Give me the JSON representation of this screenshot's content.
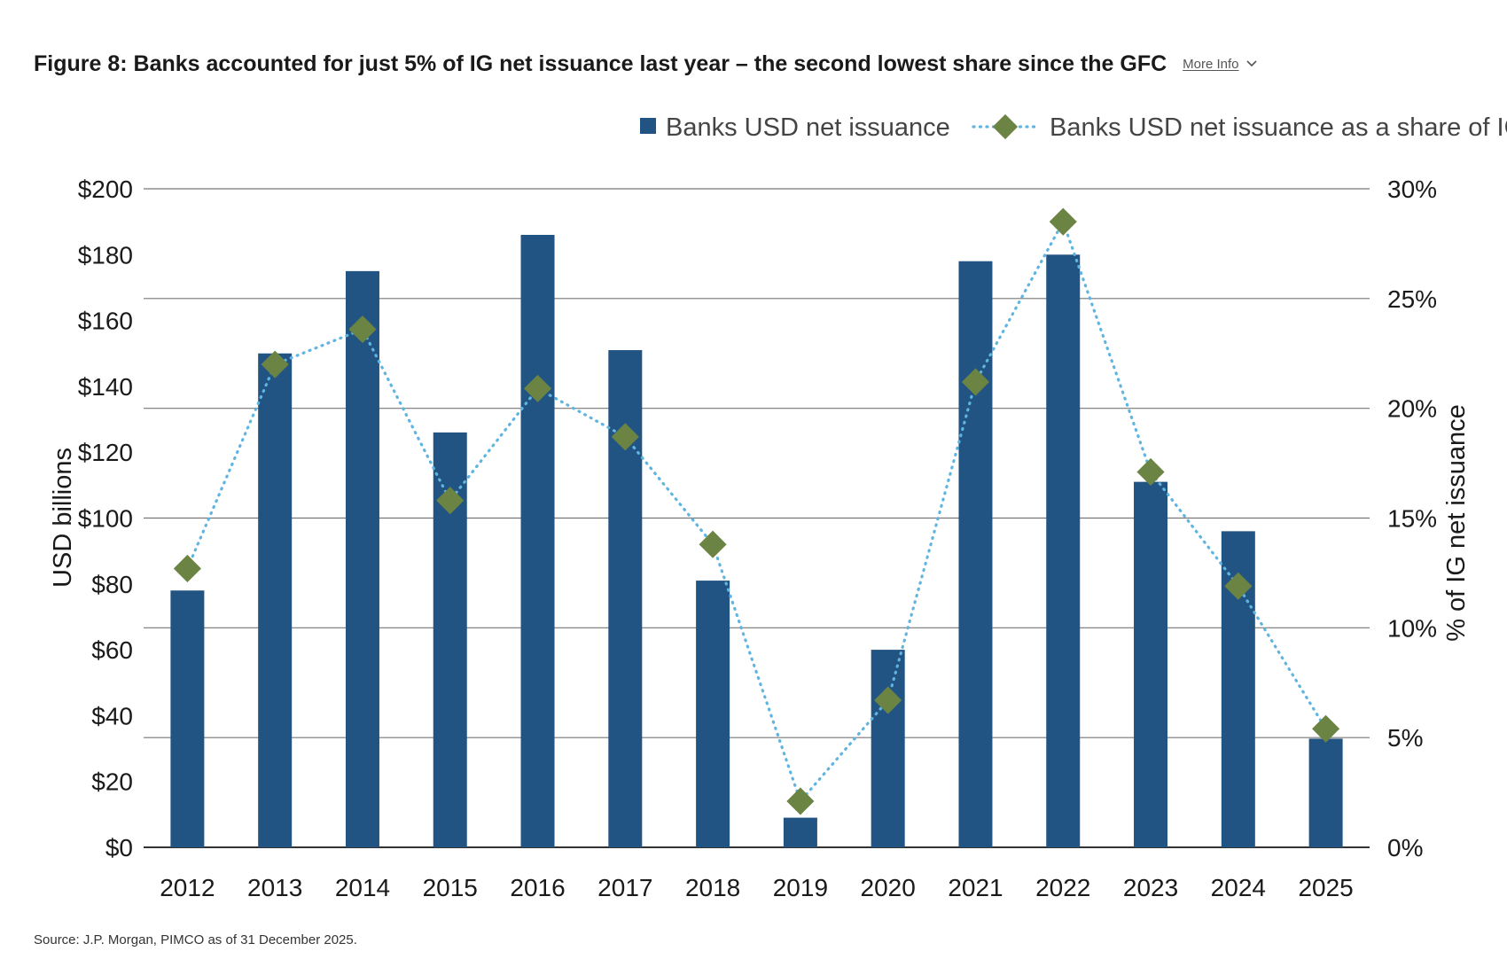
{
  "header": {
    "title": "Figure 8: Banks accounted for just 5% of IG net issuance last year – the second lowest share since the GFC",
    "more_info": "More Info"
  },
  "source": "Source: J.P. Morgan, PIMCO as of 31 December 2025.",
  "colors": {
    "bar": "#215483",
    "marker": "#6b8443",
    "line": "#5fb4e0",
    "grid": "#777777",
    "axis": "#333333"
  },
  "chart_data": {
    "type": "bar",
    "categories": [
      "2012",
      "2013",
      "2014",
      "2015",
      "2016",
      "2017",
      "2018",
      "2019",
      "2020",
      "2021",
      "2022",
      "2023",
      "2024",
      "2025"
    ],
    "series": [
      {
        "name": "Banks USD net issuance",
        "type": "bar",
        "axis": "left",
        "values": [
          78,
          150,
          175,
          126,
          186,
          151,
          81,
          9,
          60,
          178,
          180,
          111,
          96,
          33
        ]
      },
      {
        "name": "Banks USD net issuance as a share of IG",
        "type": "line",
        "axis": "right",
        "style": "dotted line with diamond markers",
        "values": [
          12.7,
          22.0,
          23.6,
          15.8,
          20.9,
          18.7,
          13.8,
          2.1,
          6.7,
          21.2,
          28.5,
          17.1,
          11.9,
          5.4
        ]
      }
    ],
    "y_left": {
      "label": "USD billions",
      "ylim": [
        0,
        200
      ],
      "ticks": [
        "$0",
        "$20",
        "$40",
        "$60",
        "$80",
        "$100",
        "$120",
        "$140",
        "$160",
        "$180",
        "$200"
      ]
    },
    "y_right": {
      "label": "% of IG net issuance",
      "ylim": [
        0,
        30
      ],
      "ticks": [
        "0%",
        "5%",
        "10%",
        "15%",
        "20%",
        "25%",
        "30%"
      ]
    },
    "grid": true,
    "legend_position": "top-right"
  }
}
